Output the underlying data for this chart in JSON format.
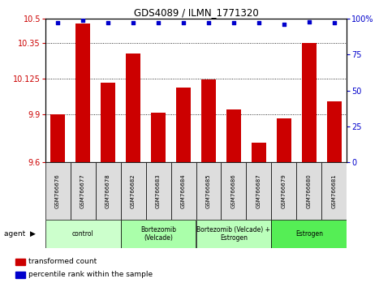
{
  "title": "GDS4089 / ILMN_1771320",
  "samples": [
    "GSM766676",
    "GSM766677",
    "GSM766678",
    "GSM766682",
    "GSM766683",
    "GSM766684",
    "GSM766685",
    "GSM766686",
    "GSM766687",
    "GSM766679",
    "GSM766680",
    "GSM766681"
  ],
  "bar_values": [
    9.9,
    10.47,
    10.1,
    10.28,
    9.91,
    10.07,
    10.12,
    9.93,
    9.72,
    9.875,
    10.35,
    9.98
  ],
  "percentile_values": [
    97,
    99,
    97,
    97,
    97,
    97,
    97,
    97,
    97,
    96,
    98,
    97
  ],
  "ymin": 9.6,
  "ymax": 10.5,
  "yticks": [
    9.6,
    9.9,
    10.125,
    10.35,
    10.5
  ],
  "ytick_labels": [
    "9.6",
    "9.9",
    "10.125",
    "10.35",
    "10.5"
  ],
  "right_yticks": [
    0,
    25,
    50,
    75,
    100
  ],
  "right_ytick_labels": [
    "0",
    "25",
    "50",
    "75",
    "100%"
  ],
  "bar_color": "#cc0000",
  "percentile_color": "#0000cc",
  "grid_color": "#000000",
  "agent_groups": [
    {
      "label": "control",
      "start": 0,
      "end": 3,
      "color": "#ccffcc"
    },
    {
      "label": "Bortezomib\n(Velcade)",
      "start": 3,
      "end": 6,
      "color": "#aaffaa"
    },
    {
      "label": "Bortezomib (Velcade) +\nEstrogen",
      "start": 6,
      "end": 9,
      "color": "#bbffbb"
    },
    {
      "label": "Estrogen",
      "start": 9,
      "end": 12,
      "color": "#55ee55"
    }
  ],
  "legend_items": [
    {
      "color": "#cc0000",
      "label": "transformed count"
    },
    {
      "color": "#0000cc",
      "label": "percentile rank within the sample"
    }
  ],
  "bar_color_legend": "#cc0000",
  "perc_color_legend": "#0000cc",
  "sample_bg": "#dddddd",
  "xlabel_color": "#cc0000",
  "right_ylabel_color": "#0000cc"
}
